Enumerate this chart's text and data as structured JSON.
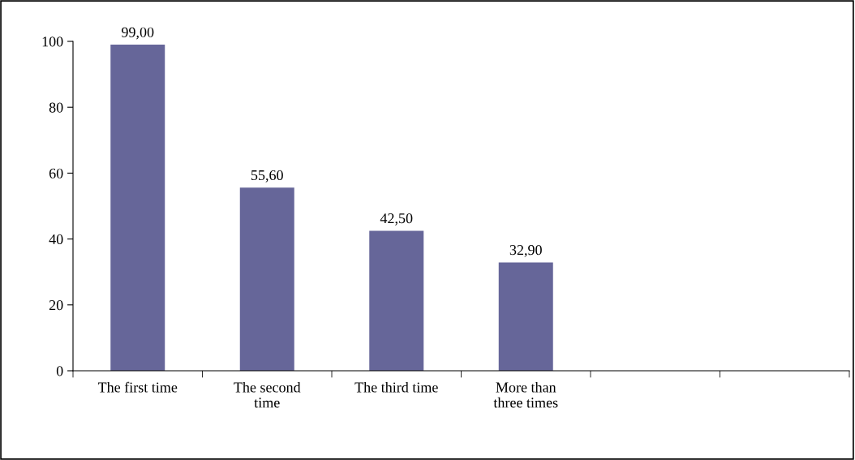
{
  "chart_data": {
    "type": "bar",
    "categories": [
      "The first time",
      "The second time",
      "The third time",
      "More than three times",
      null,
      null
    ],
    "values": [
      99.0,
      55.6,
      42.5,
      32.9,
      null,
      null
    ],
    "value_labels": [
      "99,00",
      "55,60",
      "42,50",
      "32,90",
      null,
      null
    ],
    "color": "#666699",
    "ylim": [
      0,
      100
    ],
    "yticks": [
      0,
      20,
      40,
      60,
      80,
      100
    ],
    "grid": false,
    "legend": false
  }
}
